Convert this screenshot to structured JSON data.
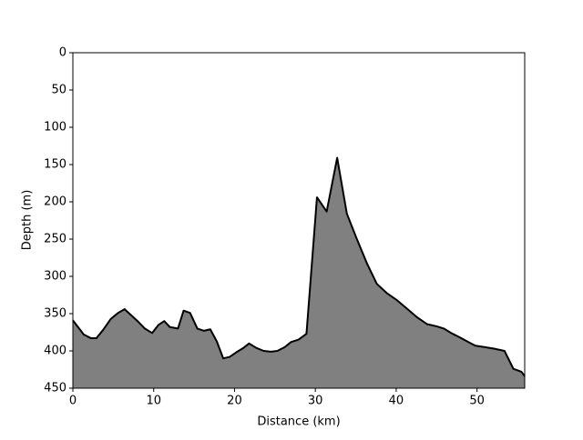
{
  "chart_data": {
    "type": "area",
    "xlabel": "Distance (km)",
    "ylabel": "Depth (m)",
    "x": [
      0,
      1.35,
      2.25,
      2.9,
      3.8,
      4.7,
      5.6,
      6.4,
      7.2,
      8.1,
      8.9,
      9.8,
      10.6,
      11.3,
      12.0,
      13.0,
      13.7,
      14.5,
      15.4,
      16.2,
      17.0,
      17.8,
      18.6,
      19.4,
      20.2,
      21.1,
      21.8,
      22.7,
      23.6,
      24.5,
      25.3,
      26.2,
      27.0,
      27.9,
      28.9,
      30.2,
      31.4,
      32.7,
      33.9,
      35.1,
      36.4,
      37.6,
      38.9,
      40.1,
      41.3,
      42.6,
      43.8,
      45.0,
      45.9,
      46.8,
      47.9,
      48.9,
      49.8,
      51.0,
      52.1,
      53.4,
      54.5,
      55.5,
      55.9
    ],
    "series": [
      {
        "color": "#808080",
        "line_color": "#000000",
        "values": [
          359,
          378,
          383,
          383,
          371,
          357,
          349,
          344,
          352,
          361,
          370,
          376,
          365,
          360,
          368,
          370,
          346,
          349,
          370,
          373,
          371,
          387,
          410,
          408,
          402,
          396,
          390,
          396,
          400,
          401,
          400,
          395,
          388,
          385,
          377,
          194,
          213,
          141,
          216,
          249,
          283,
          310,
          323,
          332,
          343,
          355,
          364,
          367,
          370,
          376,
          382,
          388,
          393,
          395,
          397,
          400,
          424,
          428,
          434
        ]
      }
    ],
    "xlim": [
      0,
      55.9
    ],
    "xticks": [
      0,
      10,
      20,
      30,
      40,
      50
    ],
    "ylim": [
      0,
      450
    ],
    "yticks": [
      0,
      50,
      100,
      150,
      200,
      250,
      300,
      350,
      400,
      450
    ],
    "y_inverted": true,
    "grid": false
  }
}
